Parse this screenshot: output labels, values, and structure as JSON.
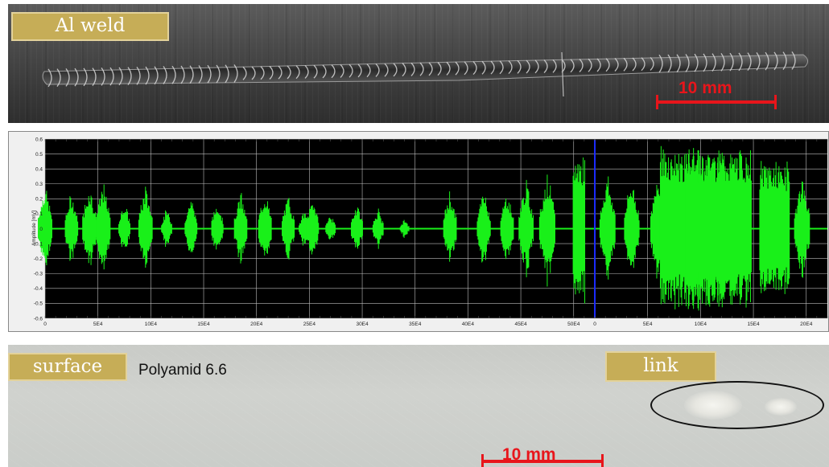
{
  "weld_photo": {
    "tag_label": "Al weld",
    "scale_label": "10 mm"
  },
  "signal_chart": {
    "y_axis_label": "Amplitude [mV]",
    "y_ticks": [
      "0.6",
      "0.5",
      "0.4",
      "0.3",
      "0.2",
      "0.1",
      "0",
      "-0.1",
      "-0.2",
      "-0.3",
      "-0.4",
      "-0.5",
      "-0.6"
    ],
    "x_ticks": [
      "0",
      "5E4",
      "10E4",
      "15E4",
      "20E4",
      "25E4",
      "30E4",
      "35E4",
      "40E4",
      "45E4",
      "50E4",
      "0",
      "5E4",
      "10E4",
      "15E4",
      "20E4"
    ],
    "colors": {
      "signal": "#19f019",
      "background": "#000000",
      "grid": "#bdbdbd",
      "marker": "#1c2cff"
    }
  },
  "surface_photo": {
    "tag_label": "surface",
    "material_label": "Polyamid 6.6",
    "link_label": "link",
    "scale_label": "10 mm"
  },
  "chart_data": {
    "type": "line",
    "title": "",
    "ylabel": "Amplitude [mV]",
    "ylim": [
      -0.6,
      0.6
    ],
    "x_tick_labels": [
      "0",
      "5E4",
      "10E4",
      "15E4",
      "20E4",
      "25E4",
      "30E4",
      "35E4",
      "40E4",
      "45E4",
      "50E4",
      "0",
      "5E4",
      "10E4",
      "15E4",
      "20E4"
    ],
    "grid": true,
    "segments": [
      {
        "name": "",
        "x_range": [
          0,
          52
        ],
        "unit_scale": "E4"
      },
      {
        "name": "",
        "x_range": [
          0,
          21
        ],
        "unit_scale": "E4"
      }
    ],
    "bursts": [
      {
        "x": 0.0,
        "amp": 0.33
      },
      {
        "x": 2.5,
        "amp": 0.27
      },
      {
        "x": 4.2,
        "amp": 0.33
      },
      {
        "x": 5.5,
        "amp": 0.34
      },
      {
        "x": 7.5,
        "amp": 0.2
      },
      {
        "x": 9.5,
        "amp": 0.32
      },
      {
        "x": 11.5,
        "amp": 0.15
      },
      {
        "x": 13.8,
        "amp": 0.24
      },
      {
        "x": 16.3,
        "amp": 0.21
      },
      {
        "x": 18.5,
        "amp": 0.27
      },
      {
        "x": 20.8,
        "amp": 0.28
      },
      {
        "x": 23.0,
        "amp": 0.25
      },
      {
        "x": 24.5,
        "amp": 0.14
      },
      {
        "x": 25.3,
        "amp": 0.24
      },
      {
        "x": 27.0,
        "amp": 0.11
      },
      {
        "x": 29.5,
        "amp": 0.2
      },
      {
        "x": 31.5,
        "amp": 0.15
      },
      {
        "x": 34.0,
        "amp": 0.07
      },
      {
        "x": 38.3,
        "amp": 0.28
      },
      {
        "x": 41.5,
        "amp": 0.3
      },
      {
        "x": 43.7,
        "amp": 0.28
      },
      {
        "x": 45.5,
        "amp": 0.36
      },
      {
        "x": 47.5,
        "amp": 0.42
      },
      {
        "x": 50.5,
        "amp": 0.52
      },
      {
        "x": 53.2,
        "amp": 0.41
      },
      {
        "x": 55.5,
        "amp": 0.38
      },
      {
        "x": 58.0,
        "amp": 0.4
      },
      {
        "x": 61.3,
        "amp": 0.57
      },
      {
        "x": 63.7,
        "amp": 0.55
      },
      {
        "x": 69.0,
        "amp": 0.47
      },
      {
        "x": 71.6,
        "amp": 0.4
      }
    ],
    "marker_x": 52
  }
}
